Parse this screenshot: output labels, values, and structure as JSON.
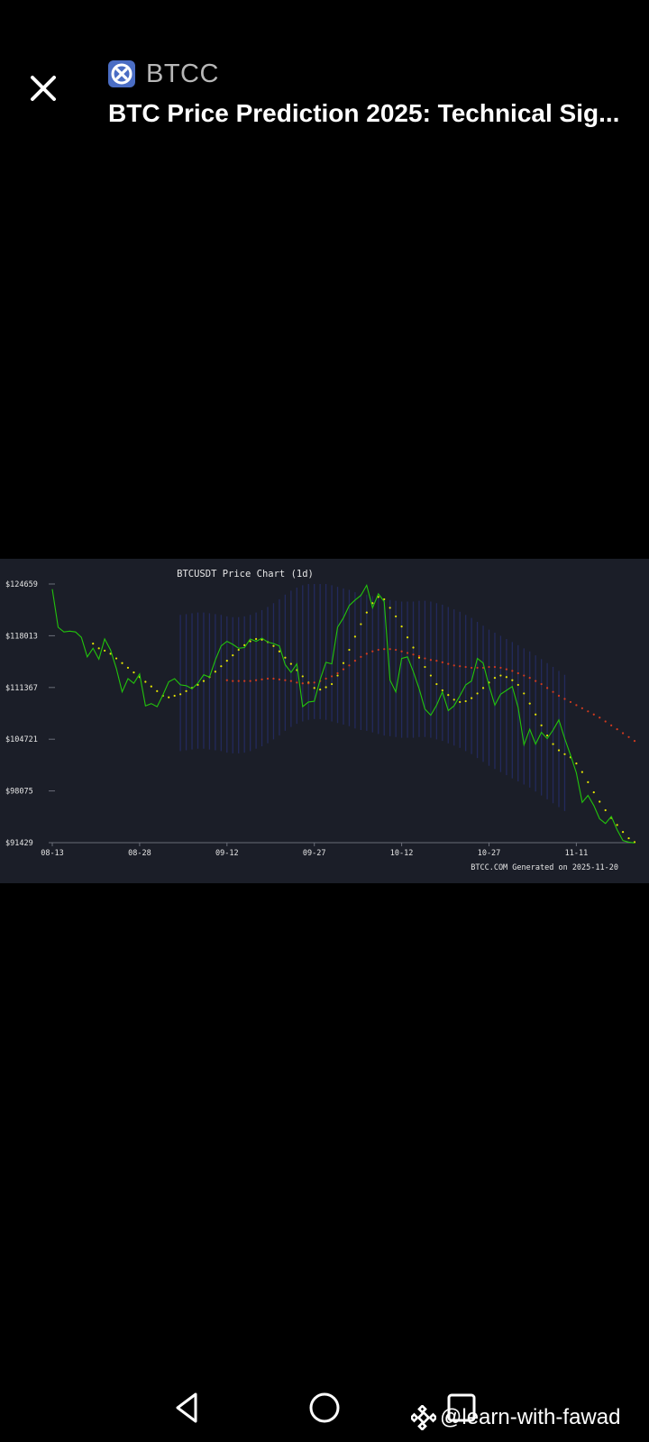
{
  "header": {
    "close_icon": "close-icon",
    "brand_name": "BTCC",
    "brand_logo": "btcc-logo-icon",
    "brand_color": "#4a6dc4",
    "title": "BTC Price Prediction 2025: Technical Sig..."
  },
  "chart_data": {
    "type": "line",
    "title": "BTCUSDT Price Chart (1d)",
    "footer": "BTCC.COM Generated on 2025-11-20",
    "ylim": [
      91429,
      124659
    ],
    "y_ticks": [
      124659,
      118013,
      111367,
      104721,
      98075,
      91429
    ],
    "y_tick_labels": [
      "$124659",
      "$118013",
      "$111367",
      "$104721",
      "$98075",
      "$91429"
    ],
    "x_ticks": [
      0,
      15,
      30,
      45,
      60,
      75,
      90
    ],
    "x_tick_labels": [
      "08-13",
      "08-28",
      "09-12",
      "09-27",
      "10-12",
      "10-27",
      "11-11"
    ],
    "grid": false,
    "series": [
      {
        "name": "",
        "style": "line",
        "color": "#22c40c",
        "x": [
          0,
          1,
          2,
          3,
          4,
          5,
          6,
          7,
          8,
          9,
          10,
          11,
          12,
          13,
          14,
          15,
          16,
          17,
          18,
          19,
          20,
          21,
          22,
          23,
          24,
          25,
          26,
          27,
          28,
          29,
          30,
          31,
          32,
          33,
          34,
          35,
          36,
          37,
          38,
          39,
          40,
          41,
          42,
          43,
          44,
          45,
          46,
          47,
          48,
          49,
          50,
          51,
          52,
          53,
          54,
          55,
          56,
          57,
          58,
          59,
          60,
          61,
          62,
          63,
          64,
          65,
          66,
          67,
          68,
          69,
          70,
          71,
          72,
          73,
          74,
          75,
          76,
          77,
          78,
          79,
          80,
          81,
          82,
          83,
          84,
          85,
          86,
          87,
          88,
          89,
          90,
          91,
          92,
          93,
          94,
          95,
          96,
          97,
          98,
          99,
          100
        ],
        "values": [
          124000,
          119100,
          118500,
          118600,
          118500,
          117800,
          115300,
          116400,
          115000,
          117600,
          116200,
          113800,
          110800,
          112500,
          111900,
          113100,
          109000,
          109300,
          108900,
          110400,
          112100,
          112500,
          111700,
          111600,
          111200,
          111900,
          113000,
          112700,
          114900,
          116700,
          117300,
          116900,
          116400,
          116500,
          117600,
          117300,
          117700,
          117200,
          117000,
          116700,
          114300,
          113300,
          114400,
          108900,
          109500,
          109600,
          112400,
          114600,
          114400,
          119100,
          120300,
          121900,
          122600,
          123200,
          124500,
          121600,
          123400,
          122400,
          112300,
          110800,
          115100,
          115300,
          113400,
          111200,
          108600,
          107800,
          109100,
          110800,
          108400,
          109000,
          110300,
          111700,
          112200,
          115100,
          114500,
          111600,
          109100,
          110500,
          111000,
          111500,
          108800,
          104000,
          106000,
          104100,
          105600,
          104800,
          105900,
          107200,
          104800,
          102700,
          100400,
          96600,
          97500,
          96200,
          94500,
          93900,
          94800,
          93100,
          91700,
          91500,
          91400
        ]
      },
      {
        "name": "",
        "style": "dots",
        "color": "#e6e600",
        "x": [
          7,
          8,
          9,
          10,
          11,
          12,
          13,
          14,
          15,
          16,
          17,
          18,
          19,
          20,
          21,
          22,
          23,
          24,
          25,
          26,
          27,
          28,
          29,
          30,
          31,
          32,
          33,
          34,
          35,
          36,
          37,
          38,
          39,
          40,
          41,
          42,
          43,
          44,
          45,
          46,
          47,
          48,
          49,
          50,
          51,
          52,
          53,
          54,
          55,
          56,
          57,
          58,
          59,
          60,
          61,
          62,
          63,
          64,
          65,
          66,
          67,
          68,
          69,
          70,
          71,
          72,
          73,
          74,
          75,
          76,
          77,
          78,
          79,
          80,
          81,
          82,
          83,
          84,
          85,
          86,
          87,
          88,
          89,
          90,
          91,
          92,
          93,
          94,
          95,
          96,
          97,
          98,
          99,
          100
        ],
        "values": [
          117000,
          116400,
          116100,
          115700,
          115100,
          114500,
          113900,
          113300,
          112700,
          112100,
          111500,
          110900,
          110300,
          110100,
          110300,
          110500,
          110900,
          111300,
          111700,
          112200,
          112700,
          113400,
          114100,
          114800,
          115500,
          116200,
          116800,
          117300,
          117600,
          117500,
          117200,
          116700,
          116000,
          115200,
          114400,
          113600,
          112800,
          112000,
          111300,
          111100,
          111400,
          111800,
          112900,
          114500,
          116200,
          117900,
          119500,
          121000,
          122200,
          123000,
          122700,
          121600,
          120500,
          119200,
          117800,
          116500,
          115200,
          114000,
          112900,
          111800,
          111000,
          110400,
          109800,
          109500,
          109600,
          110000,
          110600,
          111300,
          112000,
          112600,
          112900,
          112700,
          112300,
          111700,
          110600,
          109300,
          107900,
          106500,
          105200,
          104100,
          103300,
          102800,
          102400,
          101600,
          100500,
          99200,
          97900,
          96700,
          95600,
          94600,
          93700,
          92800,
          92000,
          91500
        ]
      },
      {
        "name": "",
        "style": "dots",
        "color": "#d43a1e",
        "x": [
          30,
          31,
          32,
          33,
          34,
          35,
          36,
          37,
          38,
          39,
          40,
          41,
          42,
          43,
          44,
          45,
          46,
          47,
          48,
          49,
          50,
          51,
          52,
          53,
          54,
          55,
          56,
          57,
          58,
          59,
          60,
          61,
          62,
          63,
          64,
          65,
          66,
          67,
          68,
          69,
          70,
          71,
          72,
          73,
          74,
          75,
          76,
          77,
          78,
          79,
          80,
          81,
          82,
          83,
          84,
          85,
          86,
          87,
          88,
          89,
          90,
          91,
          92,
          93,
          94,
          95,
          96,
          97,
          98,
          99,
          100
        ],
        "values": [
          112300,
          112200,
          112200,
          112200,
          112200,
          112300,
          112400,
          112500,
          112500,
          112400,
          112300,
          112200,
          112000,
          111900,
          111900,
          112000,
          112200,
          112500,
          112800,
          113200,
          113700,
          114200,
          114800,
          115300,
          115700,
          116000,
          116200,
          116300,
          116300,
          116200,
          116000,
          115800,
          115600,
          115400,
          115100,
          114900,
          114800,
          114600,
          114400,
          114200,
          114100,
          114000,
          113900,
          113900,
          113900,
          114000,
          114000,
          113900,
          113700,
          113500,
          113200,
          112900,
          112600,
          112200,
          111800,
          111300,
          110800,
          110300,
          109900,
          109500,
          109100,
          108700,
          108300,
          107900,
          107500,
          107000,
          106500,
          106000,
          105500,
          105000,
          104500
        ]
      }
    ]
  },
  "navbar": {
    "back_icon": "back-triangle-icon",
    "home_icon": "home-circle-icon",
    "recents_icon": "recents-square-icon"
  },
  "watermark": {
    "icon": "binance-logo-icon",
    "text": "@learn-with-fawad"
  }
}
